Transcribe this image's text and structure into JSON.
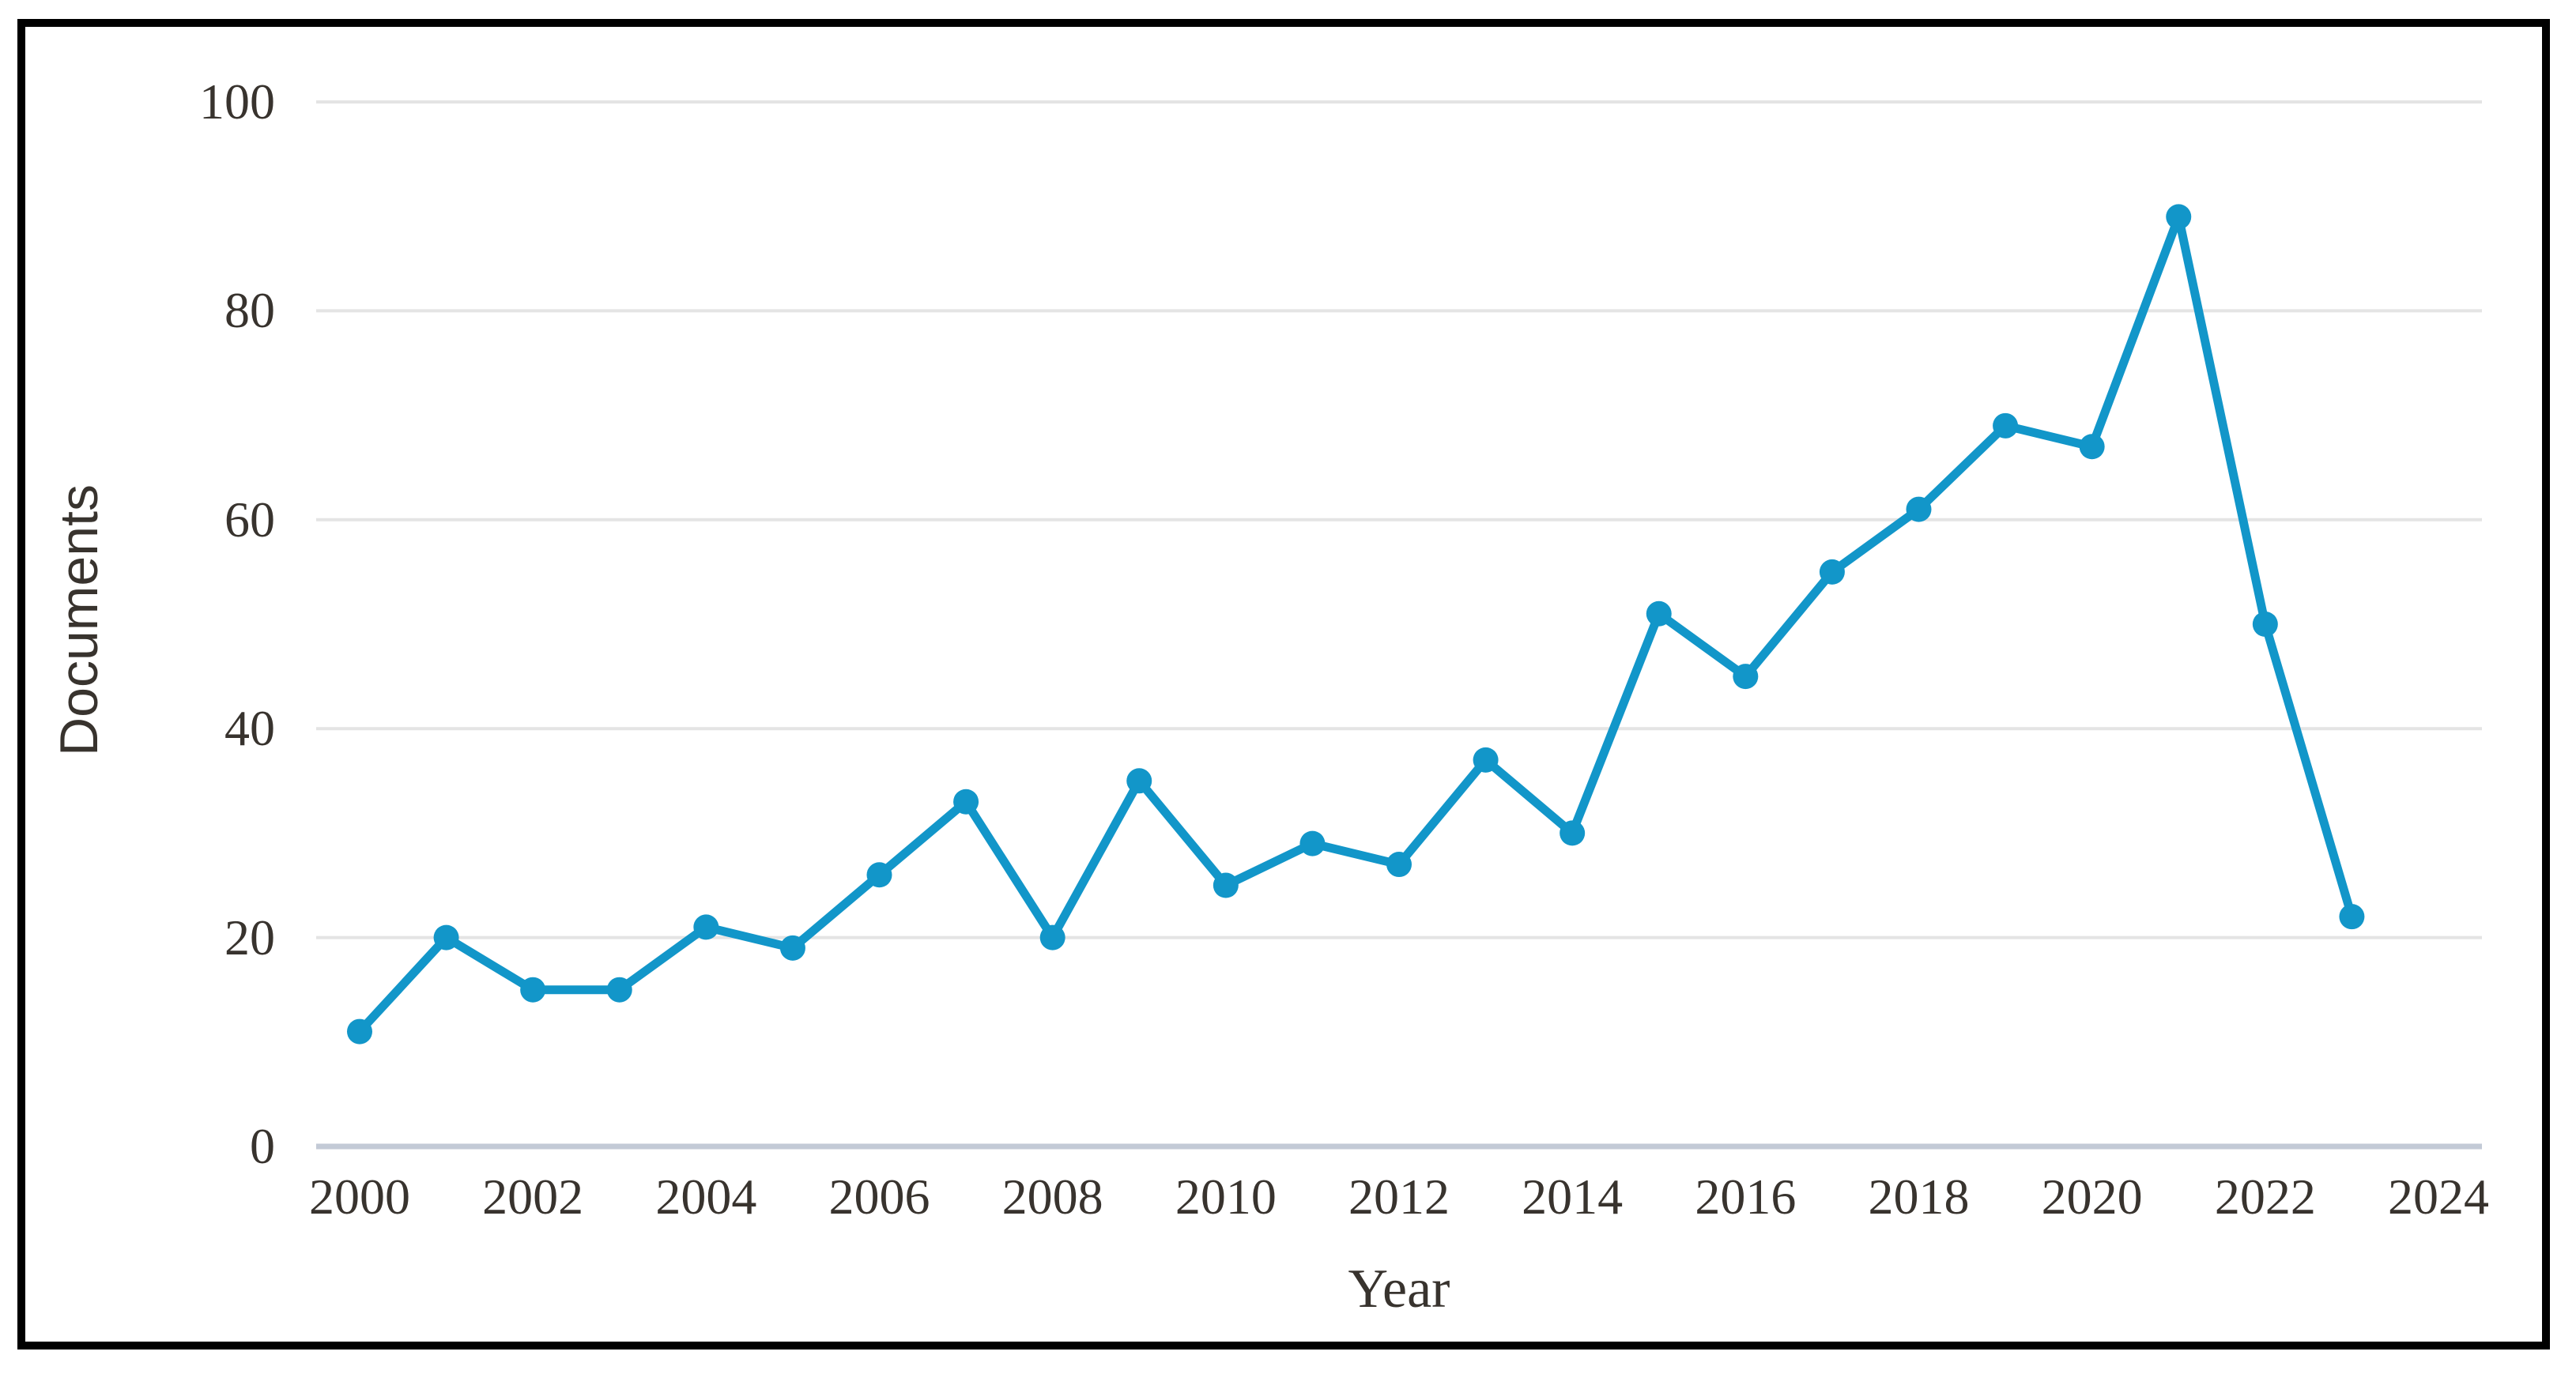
{
  "chart_data": {
    "type": "line",
    "title": "",
    "xlabel": "Year",
    "ylabel": "Documents",
    "x": [
      2000,
      2001,
      2002,
      2003,
      2004,
      2005,
      2006,
      2007,
      2008,
      2009,
      2010,
      2011,
      2012,
      2013,
      2014,
      2015,
      2016,
      2017,
      2018,
      2019,
      2020,
      2021,
      2022,
      2023
    ],
    "values": [
      11,
      20,
      15,
      15,
      21,
      19,
      26,
      33,
      20,
      35,
      25,
      29,
      27,
      37,
      30,
      51,
      45,
      55,
      61,
      69,
      67,
      89,
      50,
      22
    ],
    "series_name": "Documents",
    "xlim": [
      2000,
      2024
    ],
    "ylim": [
      0,
      100
    ],
    "x_ticks": [
      2000,
      2002,
      2004,
      2006,
      2008,
      2010,
      2012,
      2014,
      2016,
      2018,
      2020,
      2022,
      2024
    ],
    "y_ticks": [
      0,
      20,
      40,
      60,
      80,
      100
    ],
    "grid": "horizontal-only",
    "legend": "none",
    "marker": "circle",
    "colors": {
      "line": "#1296c9",
      "marker": "#1296c9",
      "gridline": "#e4e4e4",
      "zero_axis_line": "#c3cad6",
      "tick_text": "#38332e",
      "axis_title_text": "#38332e",
      "frame_border": "#000000",
      "background": "#ffffff"
    }
  }
}
